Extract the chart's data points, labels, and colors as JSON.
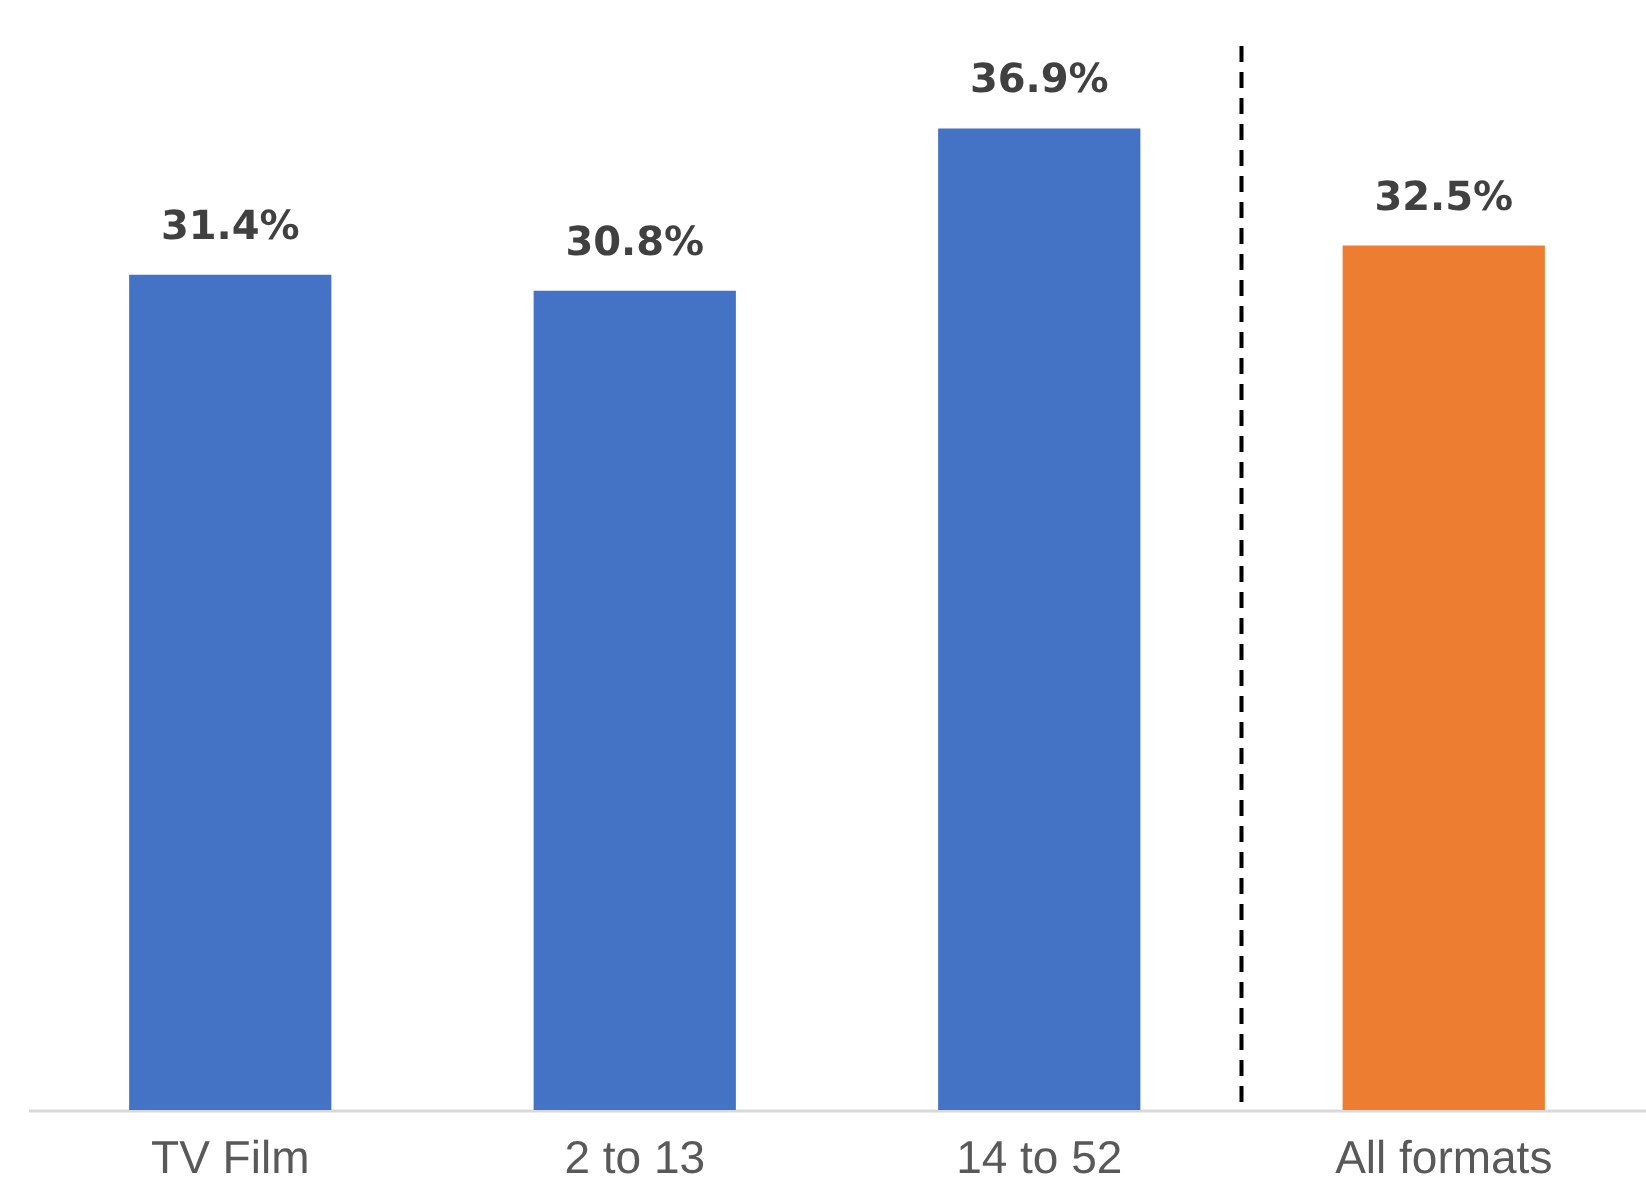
{
  "chart_data": {
    "type": "bar",
    "categories": [
      "TV Film",
      "2 to 13",
      "14 to 52",
      "All formats"
    ],
    "values": [
      31.4,
      30.8,
      36.9,
      32.5
    ],
    "colors": [
      "#4472c4",
      "#4472c4",
      "#4472c4",
      "#ed7d31"
    ],
    "value_labels": [
      "31.4%",
      "30.8%",
      "36.9%",
      "32.5%"
    ],
    "ylim": [
      0,
      40
    ]
  }
}
